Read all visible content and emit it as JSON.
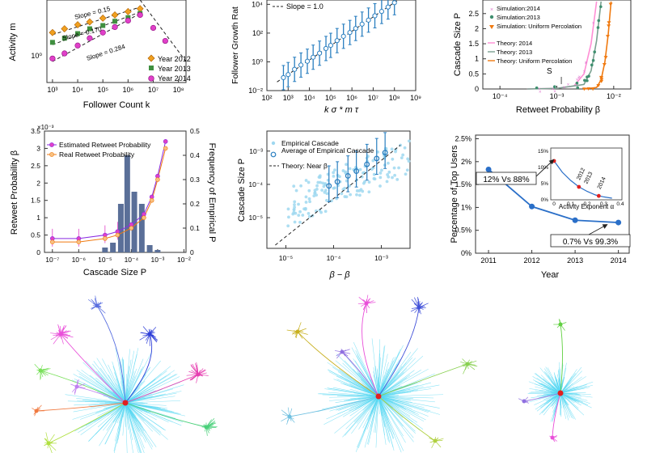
{
  "colors": {
    "y2012": "#f0a020",
    "y2013": "#3f8f3f",
    "y2014": "#e040c8",
    "cascade": "#2a7fc0",
    "cascade_light": "#9fd8f0",
    "theory_orange": "#f07a10",
    "top_users": "#2a6fc8",
    "red_point": "#e02020",
    "bars": "#5a6f98",
    "network_cyan": "#55d7f2"
  },
  "chart_data": [
    {
      "id": "activity_vs_followers",
      "type": "scatter",
      "xscale": "log",
      "yscale": "log",
      "ylabel": "Activity m",
      "xlabel": "Follower Count k",
      "xtick_labels": [
        "10³",
        "10⁴",
        "10⁵",
        "10⁶",
        "10⁷",
        "10⁸"
      ],
      "ytick_labels": [
        "10⁰"
      ],
      "annotations": [
        "Slope = 0.15",
        "Slope = 0.170",
        "Slope = 0.284"
      ],
      "legend": [
        "Year 2012",
        "Year 2013",
        "Year 2014"
      ],
      "series": [
        {
          "name": "Year 2012",
          "marker": "diamond",
          "x": [
            1000,
            3000,
            10000,
            30000,
            100000,
            300000,
            1000000,
            3000000
          ],
          "y": [
            2.5,
            2.9,
            3.4,
            3.8,
            4.4,
            5.0,
            5.7,
            6.4
          ]
        },
        {
          "name": "Year 2013",
          "marker": "square",
          "x": [
            1000,
            3000,
            10000,
            30000,
            100000,
            300000,
            1000000,
            3000000
          ],
          "y": [
            1.7,
            2.0,
            2.4,
            2.9,
            3.3,
            3.9,
            4.5,
            5.3
          ]
        },
        {
          "name": "Year 2014",
          "marker": "circle",
          "x": [
            1000,
            3000,
            10000,
            30000,
            100000,
            300000,
            1000000,
            3000000,
            10000000,
            30000000
          ],
          "y": [
            0.9,
            1.1,
            1.5,
            2.0,
            2.5,
            3.1,
            4.0,
            5.0,
            3.0,
            1.8
          ]
        }
      ]
    },
    {
      "id": "follower_growth",
      "type": "scatter",
      "xscale": "log",
      "yscale": "log",
      "ylabel": "Follower Growth Rat",
      "xlabel": "k σ * m τ",
      "xtick_labels": [
        "10²",
        "10³",
        "10⁴",
        "10⁵",
        "10⁶",
        "10⁷",
        "10⁸",
        "10⁹"
      ],
      "ytick_labels": [
        "10⁻²",
        "10⁰",
        "10²",
        "10⁴"
      ],
      "legend": [
        "Slope = 1.0"
      ],
      "x": [
        600,
        1000,
        2000,
        4000,
        8000,
        15000,
        30000,
        60000,
        100000,
        200000,
        400000,
        800000,
        1500000,
        3000000,
        6000000,
        12000000,
        25000000,
        50000000,
        100000000
      ],
      "y": [
        0.08,
        0.13,
        0.3,
        0.6,
        1.1,
        2.1,
        4.0,
        8.5,
        14,
        30,
        60,
        110,
        210,
        420,
        800,
        1600,
        3200,
        6500,
        13000
      ]
    },
    {
      "id": "cascade_vs_retweet",
      "type": "line",
      "xscale": "log",
      "ylabel": "Cascade Size P",
      "xlabel": "Retweet Probability β",
      "xtick_labels": [
        "10⁻⁴",
        "10⁻³",
        "10⁻²"
      ],
      "ytick_labels": [
        "0",
        "0.5",
        "1",
        "1.5",
        "2",
        "2.5"
      ],
      "legend": [
        "Simulation:2014",
        "Simulation:2013",
        "Simulation: Uniform Percolation",
        "Theory: 2014",
        "Theory: 2013",
        "Theory: Uniform Percolation"
      ],
      "annotations": [
        "S"
      ],
      "series": [
        {
          "name": "Theory: 2014",
          "x": [
            0.0003,
            0.001,
            0.002,
            0.003,
            0.004,
            0.005
          ],
          "y": [
            0.0,
            0.02,
            0.1,
            0.5,
            1.5,
            2.9
          ]
        },
        {
          "name": "Theory: 2013",
          "x": [
            0.0003,
            0.001,
            0.003,
            0.004,
            0.005,
            0.006
          ],
          "y": [
            0.0,
            0.02,
            0.15,
            0.6,
            1.6,
            2.9
          ]
        },
        {
          "name": "Theory: Uniform Percolation",
          "x": [
            0.003,
            0.005,
            0.006,
            0.007,
            0.008,
            0.009
          ],
          "y": [
            0.0,
            0.05,
            0.3,
            0.9,
            1.8,
            2.9
          ]
        }
      ]
    },
    {
      "id": "retweet_prob_vs_cascade",
      "type": "line",
      "xscale": "log",
      "ylabel": "Retweet Probability β",
      "ylabel_right": "Frequency of Empirical P",
      "xlabel": "Cascade Size P",
      "xtick_labels": [
        "10⁻⁷",
        "10⁻⁶",
        "10⁻⁵",
        "10⁻⁴",
        "10⁻³",
        "10⁻²"
      ],
      "ytick_labels": [
        "0",
        "0.5",
        "1",
        "1.5",
        "2",
        "2.5",
        "3",
        "3.5"
      ],
      "ytick_labels_right": [
        "0",
        "0.1",
        "0.2",
        "0.3",
        "0.4",
        "0.5"
      ],
      "y_exponent": "×10⁻³",
      "legend": [
        "Estimated Retweet Probability",
        "Real Retweet Probability"
      ],
      "bars": {
        "x": [
          1e-05,
          2e-05,
          4e-05,
          7e-05,
          0.00013,
          0.00025,
          0.0005,
          0.001
        ],
        "y": [
          0.02,
          0.04,
          0.2,
          0.4,
          0.25,
          0.2,
          0.03,
          0.01
        ]
      },
      "series": [
        {
          "name": "Estimated Retweet Probability",
          "x": [
            1e-07,
            1e-06,
            1e-05,
            3e-05,
            0.0001,
            0.0003,
            0.0006,
            0.001,
            0.002
          ],
          "y": [
            0.0004,
            0.0004,
            0.0005,
            0.0006,
            0.0008,
            0.0011,
            0.0016,
            0.0022,
            0.0032
          ]
        },
        {
          "name": "Real Retweet Probability",
          "x": [
            1e-07,
            1e-06,
            1e-05,
            3e-05,
            0.0001,
            0.0003,
            0.0006,
            0.001,
            0.002
          ],
          "y": [
            0.0003,
            0.0003,
            0.0004,
            0.0005,
            0.0007,
            0.001,
            0.0015,
            0.0021,
            0.003
          ]
        }
      ]
    },
    {
      "id": "cascade_empirical",
      "type": "scatter",
      "xscale": "log",
      "yscale": "log",
      "ylabel": "Cascade Size P",
      "xlabel": "β − β",
      "xtick_labels": [
        "10⁻⁵",
        "10⁻⁴",
        "10⁻³"
      ],
      "ytick_labels": [
        "10⁻⁵",
        "10⁻⁴",
        "10⁻³"
      ],
      "legend": [
        "Empirical Cascade",
        "Average of Empirical Cascade",
        "Theory: Near β"
      ],
      "x": [
        8e-05,
        0.00012,
        0.0002,
        0.0003,
        0.0005,
        0.0008,
        0.0012
      ],
      "y": [
        9e-05,
        0.00012,
        0.00018,
        0.00025,
        0.0004,
        0.0006,
        0.0009
      ]
    },
    {
      "id": "top_users",
      "type": "line",
      "ylabel": "Percentage of Top Users",
      "xlabel": "Year",
      "categories": [
        "2011",
        "2012",
        "2013",
        "2014"
      ],
      "values": [
        1.83,
        1.02,
        0.72,
        0.67
      ],
      "ytick_labels": [
        "0%",
        "0.5%",
        "1%",
        "1.5%",
        "2%",
        "2.5%"
      ],
      "annotations": [
        "12% Vs 88%",
        "0.7% Vs 99.3%"
      ],
      "inset": {
        "xlabel": "Activity Exponent α",
        "xtick_labels": [
          "0",
          "0.1",
          "0.2",
          "0.3",
          "0.4"
        ],
        "ytick_labels": [
          "0%",
          "5%",
          "10%",
          "15%"
        ],
        "annotations": [
          "2012",
          "2013",
          "2014"
        ],
        "x": [
          0,
          0.05,
          0.1,
          0.15,
          0.2,
          0.25,
          0.3,
          0.35
        ],
        "y": [
          12,
          8.5,
          6.0,
          4.0,
          2.6,
          1.5,
          0.9,
          0.5
        ]
      }
    }
  ]
}
